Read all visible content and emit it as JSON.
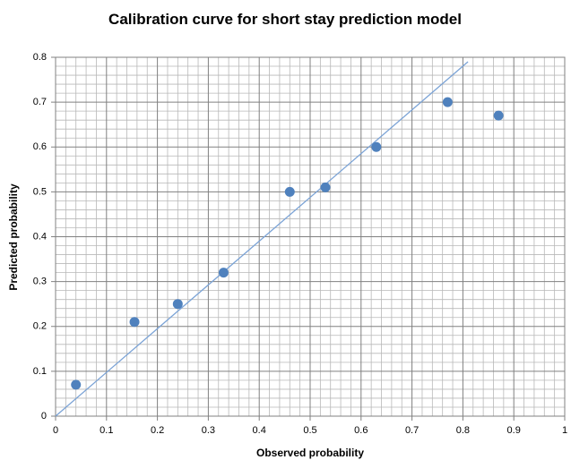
{
  "chart_data": {
    "type": "scatter",
    "title": "Calibration curve for short stay prediction model",
    "x_label": "Observed probability",
    "y_label": "Predicted probability",
    "series": [
      {
        "color": "#4f81bd",
        "x": [
          0.04,
          0.155,
          0.24,
          0.33,
          0.46,
          0.53,
          0.63,
          0.77,
          0.87
        ],
        "values": [
          0.07,
          0.21,
          0.25,
          0.32,
          0.5,
          0.51,
          0.6,
          0.7,
          0.67
        ]
      }
    ],
    "reference_line": {
      "color": "#7ba3d6",
      "x": [
        0,
        0.81
      ],
      "values": [
        0,
        0.79
      ]
    },
    "xlim": [
      0,
      1
    ],
    "xticks": [
      0,
      0.1,
      0.2,
      0.3,
      0.4,
      0.5,
      0.6,
      0.7,
      0.8,
      0.9,
      1
    ],
    "ylim": [
      0,
      0.8
    ],
    "yticks": [
      0,
      0.1,
      0.2,
      0.3,
      0.4,
      0.5,
      0.6,
      0.7,
      0.8
    ],
    "grid": true,
    "minor_grid": true
  }
}
